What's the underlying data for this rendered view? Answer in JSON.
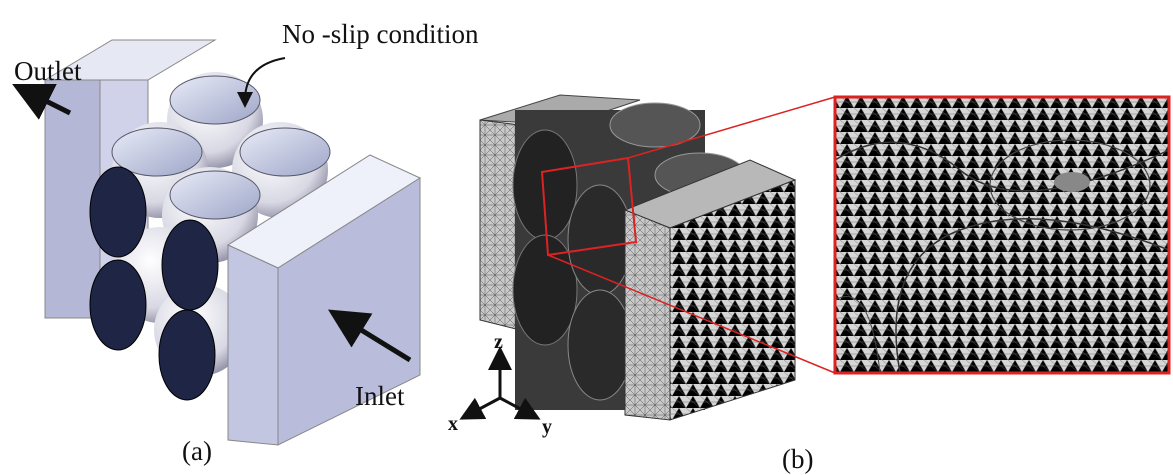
{
  "labels": {
    "no_slip": "No -slip condition",
    "outlet": "Outlet",
    "inlet": "Inlet",
    "panel_a": "(a)",
    "panel_b": "(b)",
    "axis_z": "z",
    "axis_x": "x",
    "axis_y": "y"
  }
}
